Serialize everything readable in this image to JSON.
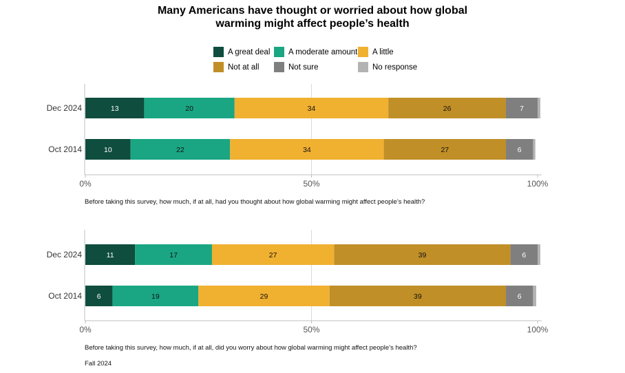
{
  "title": "Many Americans have thought or worried about how global\nwarming might affect people’s health",
  "legend": [
    {
      "label": "A great deal",
      "color": "#0f4d3e"
    },
    {
      "label": "A moderate amount",
      "color": "#1aa683"
    },
    {
      "label": "A little",
      "color": "#f0b030"
    },
    {
      "label": "Not at all",
      "color": "#c18f27"
    },
    {
      "label": "Not sure",
      "color": "#7f7f7f"
    },
    {
      "label": "No response",
      "color": "#b3b3b3"
    }
  ],
  "source": "Fall 2024",
  "chart_data": [
    {
      "type": "bar",
      "orientation": "horizontal",
      "stacked": true,
      "xlim": [
        0,
        100
      ],
      "xticks": [
        "0%",
        "50%",
        "100%"
      ],
      "categories": [
        "Dec 2024",
        "Oct 2014"
      ],
      "note": "Before taking this survey, how much, if at all, had you thought about how global warming might affect people’s health?",
      "series": [
        {
          "name": "A great deal",
          "values": [
            13,
            10
          ]
        },
        {
          "name": "A moderate amount",
          "values": [
            20,
            22
          ]
        },
        {
          "name": "A little",
          "values": [
            34,
            34
          ]
        },
        {
          "name": "Not at all",
          "values": [
            26,
            27
          ]
        },
        {
          "name": "Not sure",
          "values": [
            7,
            6
          ]
        },
        {
          "name": "No response",
          "values": [
            0.6,
            0.5
          ]
        }
      ]
    },
    {
      "type": "bar",
      "orientation": "horizontal",
      "stacked": true,
      "xlim": [
        0,
        100
      ],
      "xticks": [
        "0%",
        "50%",
        "100%"
      ],
      "categories": [
        "Dec 2024",
        "Oct 2014"
      ],
      "note": "Before taking this survey, how much, if at all, did you worry about how global warming might affect people’s health?",
      "series": [
        {
          "name": "A great deal",
          "values": [
            11,
            6
          ]
        },
        {
          "name": "A moderate amount",
          "values": [
            17,
            19
          ]
        },
        {
          "name": "A little",
          "values": [
            27,
            29
          ]
        },
        {
          "name": "Not at all",
          "values": [
            39,
            39
          ]
        },
        {
          "name": "Not sure",
          "values": [
            6,
            6
          ]
        },
        {
          "name": "No response",
          "values": [
            0.6,
            0.7
          ]
        }
      ]
    }
  ]
}
